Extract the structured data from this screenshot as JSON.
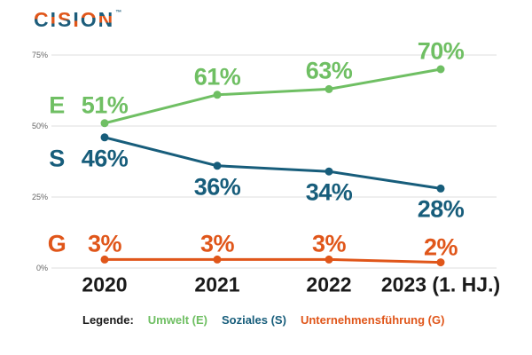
{
  "logo": {
    "text": "CISION",
    "trademark": "™"
  },
  "colors": {
    "green": "#6fbf63",
    "teal": "#175d7b",
    "orange": "#e0561a",
    "grid": "#dcdcdc",
    "tick_text": "#666666",
    "year_text": "#1a1a1a"
  },
  "chart_data": {
    "type": "line",
    "title": "",
    "categories": [
      "2020",
      "2021",
      "2022",
      "2023 (1. HJ.)"
    ],
    "series": [
      {
        "key": "E",
        "name": "Umwelt (E)",
        "color": "#6fbf63",
        "values": [
          51,
          61,
          63,
          70
        ],
        "labels": [
          "51%",
          "61%",
          "63%",
          "70%"
        ],
        "label_position": "above"
      },
      {
        "key": "S",
        "name": "Soziales (S)",
        "color": "#175d7b",
        "values": [
          46,
          36,
          34,
          28
        ],
        "labels": [
          "46%",
          "36%",
          "34%",
          "28%"
        ],
        "label_position": "below"
      },
      {
        "key": "G",
        "name": "Unternehmensführung (G)",
        "color": "#e0561a",
        "values": [
          3,
          3,
          3,
          2
        ],
        "labels": [
          "3%",
          "3%",
          "3%",
          "2%"
        ],
        "label_position": "above"
      }
    ],
    "y_ticks": [
      {
        "label": "75%",
        "value": 75
      },
      {
        "label": "50%",
        "value": 50
      },
      {
        "label": "25%",
        "value": 25
      },
      {
        "label": "0%",
        "value": 0
      }
    ],
    "ylim": [
      0,
      80
    ],
    "grid": true,
    "legend_position": "bottom"
  },
  "legend": {
    "label": "Legende:"
  }
}
